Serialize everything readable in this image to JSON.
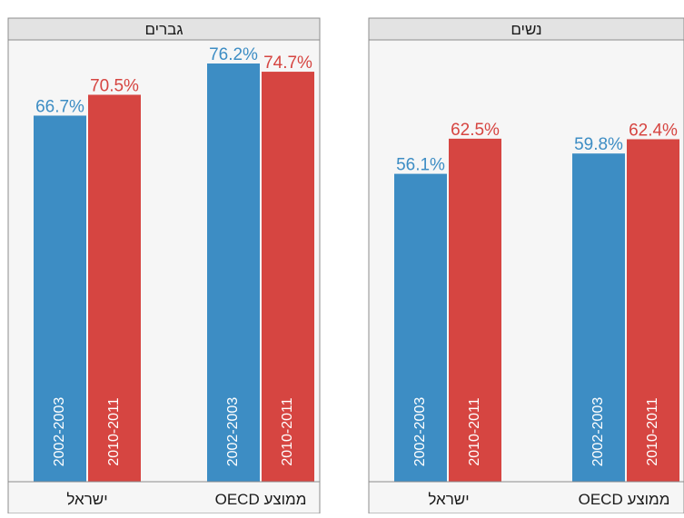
{
  "chart_data": [
    {
      "type": "bar",
      "title": "גברים",
      "categories": [
        "ישראל",
        "ממוצע OECD"
      ],
      "series": [
        {
          "name": "2002-2003",
          "values": [
            66.7,
            76.2
          ]
        },
        {
          "name": "2010-2011",
          "values": [
            70.5,
            74.7
          ]
        }
      ],
      "value_labels": [
        [
          "66.7%",
          "76.2%"
        ],
        [
          "70.5%",
          "74.7%"
        ]
      ],
      "ylim": [
        0,
        100
      ],
      "grid": false
    },
    {
      "type": "bar",
      "title": "נשים",
      "categories": [
        "ישראל",
        "ממוצע OECD"
      ],
      "series": [
        {
          "name": "2002-2003",
          "values": [
            56.1,
            59.8
          ]
        },
        {
          "name": "2010-2011",
          "values": [
            62.5,
            62.4
          ]
        }
      ],
      "value_labels": [
        [
          "56.1%",
          "59.8%"
        ],
        [
          "62.5%",
          "62.4%"
        ]
      ],
      "ylim": [
        0,
        100
      ],
      "grid": false
    }
  ],
  "colors": {
    "series_2002_2003": "#3d8dc4",
    "series_2010_2011": "#d64541",
    "panel_header_bg": "#e3e3e3",
    "panel_bg": "#f6f6f6",
    "panel_border": "#8c8c8c"
  }
}
